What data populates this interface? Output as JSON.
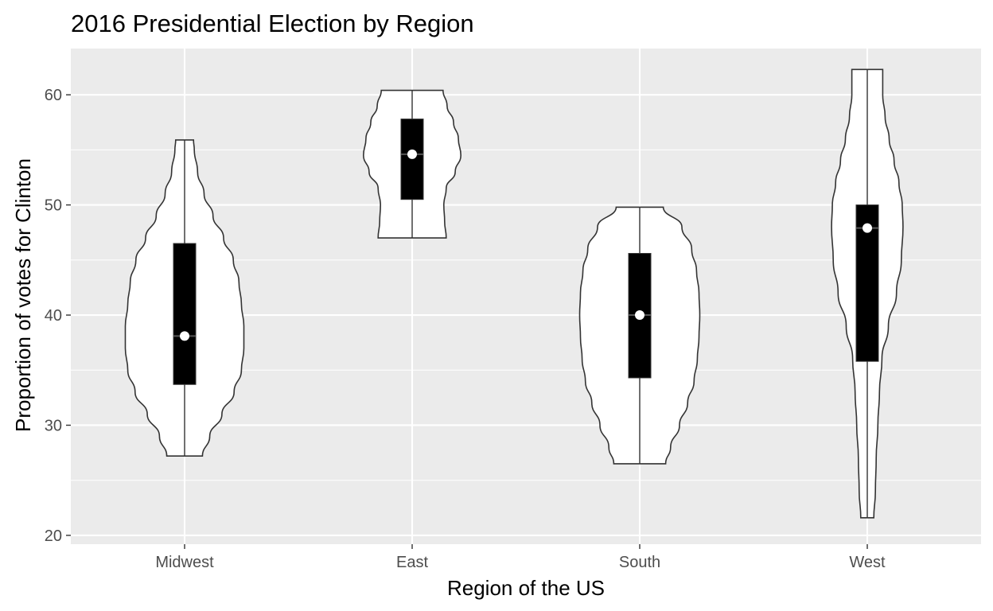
{
  "chart_data": {
    "type": "violin",
    "title": "2016 Presidential Election by Region",
    "xlabel": "Region of the US",
    "ylabel": "Proportion of votes for Clinton",
    "ylim": [
      19.2,
      64.2
    ],
    "yticks": [
      20,
      30,
      40,
      50,
      60
    ],
    "grid": true,
    "categories": [
      "Midwest",
      "East",
      "South",
      "West"
    ],
    "series": [
      {
        "category": "Midwest",
        "min": 27.2,
        "max": 55.9,
        "q1": 33.7,
        "median": 38.1,
        "q3": 46.5,
        "density": [
          [
            27.2,
            2.2
          ],
          [
            29.0,
            3.1
          ],
          [
            31.0,
            4.6
          ],
          [
            33.0,
            6.1
          ],
          [
            35.0,
            7.0
          ],
          [
            37.0,
            7.3
          ],
          [
            39.0,
            7.3
          ],
          [
            41.0,
            7.0
          ],
          [
            43.0,
            6.7
          ],
          [
            45.0,
            6.0
          ],
          [
            47.0,
            4.8
          ],
          [
            49.0,
            3.5
          ],
          [
            51.0,
            2.4
          ],
          [
            53.0,
            1.6
          ],
          [
            55.0,
            1.2
          ],
          [
            55.9,
            1.1
          ]
        ]
      },
      {
        "category": "East",
        "min": 47.0,
        "max": 60.4,
        "q1": 50.5,
        "median": 54.6,
        "q3": 57.8,
        "density": [
          [
            47.0,
            4.2
          ],
          [
            48.5,
            4.0
          ],
          [
            50.0,
            3.9
          ],
          [
            51.5,
            4.2
          ],
          [
            53.0,
            5.3
          ],
          [
            54.5,
            6.0
          ],
          [
            56.0,
            5.7
          ],
          [
            57.5,
            5.1
          ],
          [
            59.0,
            4.3
          ],
          [
            60.4,
            3.8
          ]
        ]
      },
      {
        "category": "South",
        "min": 26.5,
        "max": 49.8,
        "q1": 34.3,
        "median": 40.0,
        "q3": 45.6,
        "density": [
          [
            26.5,
            3.2
          ],
          [
            28.0,
            3.8
          ],
          [
            30.0,
            4.9
          ],
          [
            32.0,
            5.9
          ],
          [
            34.0,
            6.7
          ],
          [
            36.0,
            7.1
          ],
          [
            38.0,
            7.3
          ],
          [
            40.0,
            7.4
          ],
          [
            42.0,
            7.3
          ],
          [
            44.0,
            7.0
          ],
          [
            46.0,
            6.4
          ],
          [
            48.0,
            5.2
          ],
          [
            49.8,
            2.9
          ]
        ]
      },
      {
        "category": "West",
        "min": 21.6,
        "max": 62.3,
        "q1": 35.8,
        "median": 47.9,
        "q3": 50.0,
        "density": [
          [
            21.6,
            0.8
          ],
          [
            24.0,
            1.0
          ],
          [
            27.0,
            1.1
          ],
          [
            30.0,
            1.3
          ],
          [
            33.0,
            1.5
          ],
          [
            36.0,
            1.8
          ],
          [
            39.0,
            2.6
          ],
          [
            42.0,
            3.6
          ],
          [
            45.0,
            4.2
          ],
          [
            48.0,
            4.4
          ],
          [
            50.0,
            4.3
          ],
          [
            52.0,
            3.9
          ],
          [
            54.0,
            3.3
          ],
          [
            56.0,
            2.7
          ],
          [
            58.0,
            2.2
          ],
          [
            60.0,
            1.9
          ],
          [
            62.3,
            1.9
          ]
        ]
      }
    ]
  },
  "colors": {
    "panel_background": "#ebebeb",
    "grid": "#ffffff",
    "violin_fill": "#ffffff",
    "violin_outline": "#333333",
    "box_fill": "#000000",
    "median_point": "#ffffff",
    "tick_label": "#4d4d4d",
    "text": "#000000"
  }
}
